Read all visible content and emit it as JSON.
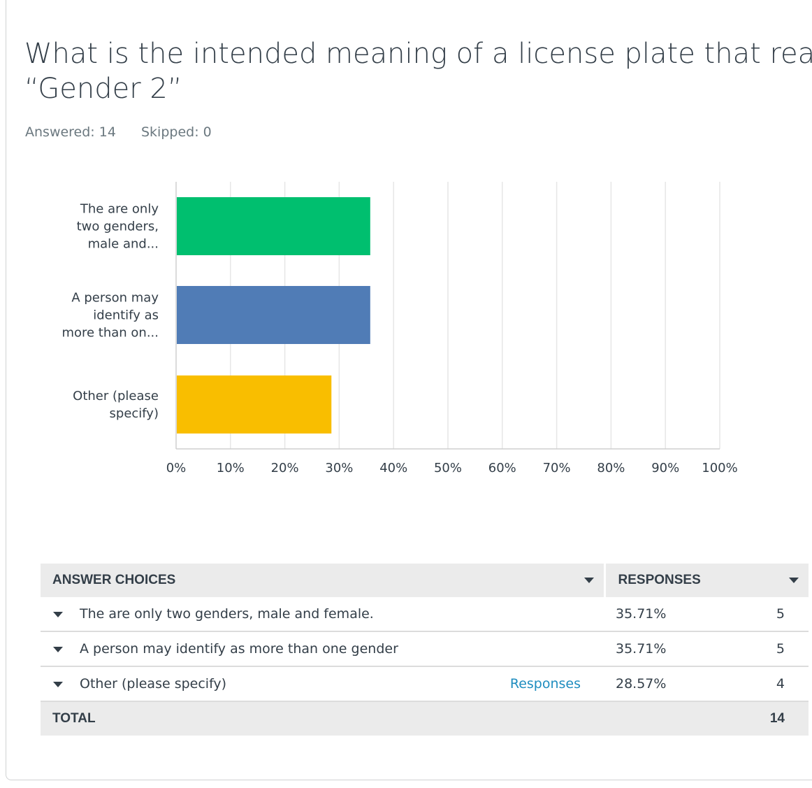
{
  "question": {
    "lines": [
      "What is the intended meaning of a license plate that reads as",
      "“Gender 2”"
    ]
  },
  "stats": {
    "answered": "Answered: 14",
    "skipped": "Skipped: 0"
  },
  "chart_data": {
    "type": "bar",
    "orientation": "horizontal",
    "categories": [
      [
        "The are only",
        "two genders,",
        "male and..."
      ],
      [
        "A person may",
        "identify as",
        "more than on..."
      ],
      [
        "Other (please",
        "specify)"
      ]
    ],
    "values": [
      35.71,
      35.71,
      28.57
    ],
    "colors": [
      "#00bf6f",
      "#507cb6",
      "#f9be00"
    ],
    "xlim": [
      0,
      100
    ],
    "xticks": [
      "0%",
      "10%",
      "20%",
      "30%",
      "40%",
      "50%",
      "60%",
      "70%",
      "80%",
      "90%",
      "100%"
    ],
    "grid": true
  },
  "table": {
    "headers": {
      "choices": "ANSWER CHOICES",
      "responses": "RESPONSES"
    },
    "rows": [
      {
        "choice": "The are only two genders, male and female.",
        "percent": "35.71%",
        "count": "5",
        "link": ""
      },
      {
        "choice": "A person may identify as more than one gender",
        "percent": "35.71%",
        "count": "5",
        "link": ""
      },
      {
        "choice": "Other (please specify)",
        "percent": "28.57%",
        "count": "4",
        "link": "Responses"
      }
    ],
    "footer": {
      "label": "TOTAL",
      "total": "14"
    }
  }
}
